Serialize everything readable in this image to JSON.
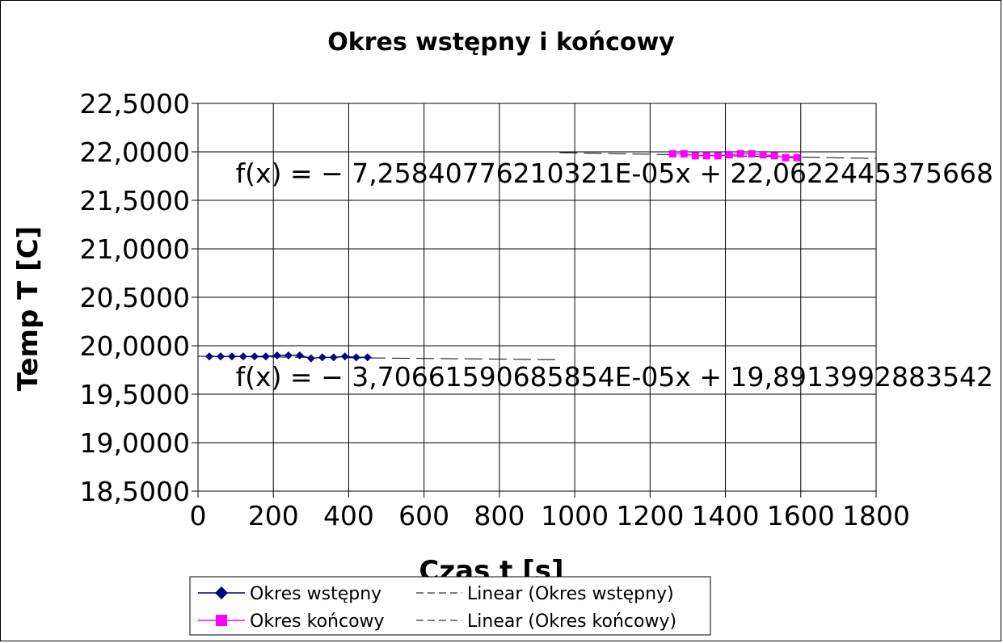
{
  "chart_data": {
    "type": "scatter",
    "title": "Okres wstępny i końcowy",
    "xlabel": "Czas t [s]",
    "ylabel": "Temp T [C]",
    "xlim": [
      0,
      1800
    ],
    "ylim": [
      18.5,
      22.5
    ],
    "x_ticks": [
      0,
      200,
      400,
      600,
      800,
      1000,
      1200,
      1400,
      1600,
      1800
    ],
    "x_tick_labels": [
      "0",
      "200",
      "400",
      "600",
      "800",
      "1000",
      "1200",
      "1400",
      "1600",
      "1800"
    ],
    "y_ticks": [
      18.5,
      19,
      19.5,
      20,
      20.5,
      21,
      21.5,
      22,
      22.5
    ],
    "y_tick_labels": [
      "18,5000",
      "19,0000",
      "19,5000",
      "20,0000",
      "20,5000",
      "21,0000",
      "21,5000",
      "22,0000",
      "22,5000"
    ],
    "grid": true,
    "legend_position": "bottom",
    "series": [
      {
        "name": "Okres wstępny",
        "marker": "diamond",
        "color": "#000080",
        "x": [
          30,
          60,
          90,
          120,
          150,
          180,
          210,
          240,
          270,
          300,
          330,
          360,
          390,
          420,
          450
        ],
        "y": [
          19.89,
          19.89,
          19.89,
          19.89,
          19.89,
          19.89,
          19.9,
          19.9,
          19.9,
          19.87,
          19.88,
          19.88,
          19.89,
          19.88,
          19.88
        ]
      },
      {
        "name": "Okres końcowy",
        "marker": "square",
        "color": "#ff00ff",
        "x": [
          1260,
          1290,
          1320,
          1350,
          1380,
          1410,
          1440,
          1470,
          1500,
          1530,
          1560,
          1590
        ],
        "y": [
          21.98,
          21.98,
          21.96,
          21.96,
          21.96,
          21.97,
          21.98,
          21.98,
          21.97,
          21.96,
          21.94,
          21.94
        ]
      },
      {
        "name": "Linear (Okres wstępny)",
        "type": "trendline",
        "color": "#000000",
        "x_range": [
          0,
          960
        ],
        "slope": -3.70661590685854e-05,
        "intercept": 19.8913992883542,
        "equation": "f(x) = − 3,70661590685854E-05x + 19,8913992883542"
      },
      {
        "name": "Linear (Okres końcowy)",
        "type": "trendline",
        "color": "#000000",
        "x_range": [
          960,
          1800
        ],
        "slope": -7.25840776210321e-05,
        "intercept": 22.0622445375668,
        "equation": "f(x) = − 7,25840776210321E-05x + 22,0622445375668"
      }
    ]
  }
}
